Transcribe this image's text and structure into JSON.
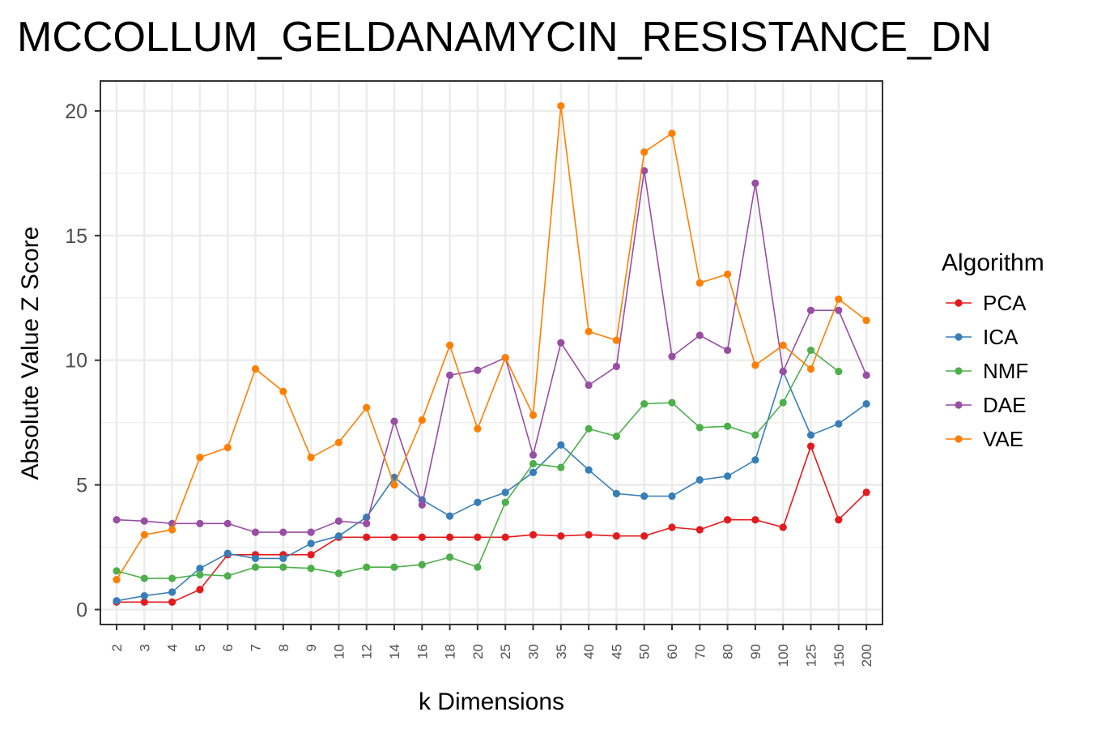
{
  "chart_data": {
    "type": "line",
    "title": "MCCOLLUM_GELDANAMYCIN_RESISTANCE_DN",
    "xlabel": "k Dimensions",
    "ylabel": "Absolute Value Z Score",
    "ylim": [
      -0.6,
      21.2
    ],
    "yticks": [
      "0",
      "5",
      "10",
      "15",
      "20"
    ],
    "grid": true,
    "legend_title": "Algorithm",
    "legend_position": "right",
    "categories": [
      "2",
      "3",
      "4",
      "5",
      "6",
      "7",
      "8",
      "9",
      "10",
      "12",
      "14",
      "16",
      "18",
      "20",
      "25",
      "30",
      "35",
      "40",
      "45",
      "50",
      "60",
      "70",
      "80",
      "90",
      "100",
      "125",
      "150",
      "200"
    ],
    "series": [
      {
        "name": "PCA",
        "color": "#e41a1c",
        "values": [
          0.3,
          0.3,
          0.3,
          0.8,
          2.2,
          2.2,
          2.2,
          2.2,
          2.9,
          2.9,
          2.9,
          2.9,
          2.9,
          2.9,
          2.9,
          3.0,
          2.95,
          3.0,
          2.95,
          2.95,
          3.3,
          3.2,
          3.6,
          3.6,
          3.3,
          6.55,
          3.6,
          4.7
        ]
      },
      {
        "name": "ICA",
        "color": "#377eb8",
        "values": [
          0.35,
          0.55,
          0.7,
          1.65,
          2.25,
          2.05,
          2.05,
          2.65,
          2.95,
          3.7,
          5.3,
          4.4,
          3.75,
          4.3,
          4.7,
          5.5,
          6.6,
          5.6,
          4.65,
          4.55,
          4.55,
          5.2,
          5.35,
          6.0,
          9.55,
          7.0,
          7.45,
          8.25
        ]
      },
      {
        "name": "NMF",
        "color": "#4daf4a",
        "values": [
          1.55,
          1.25,
          1.25,
          1.4,
          1.35,
          1.7,
          1.7,
          1.65,
          1.45,
          1.7,
          1.7,
          1.8,
          2.1,
          1.7,
          4.3,
          5.85,
          5.7,
          7.25,
          6.95,
          8.25,
          8.3,
          7.3,
          7.35,
          7.0,
          8.3,
          10.4,
          9.55,
          null
        ]
      },
      {
        "name": "DAE",
        "color": "#984ea3",
        "values": [
          3.6,
          3.55,
          3.45,
          3.45,
          3.45,
          3.1,
          3.1,
          3.1,
          3.55,
          3.45,
          7.55,
          4.2,
          9.4,
          9.6,
          10.1,
          6.2,
          10.7,
          9.0,
          9.75,
          17.6,
          10.15,
          11.0,
          10.4,
          17.1,
          9.55,
          12.0,
          12.0,
          9.4
        ]
      },
      {
        "name": "VAE",
        "color": "#ff7f00",
        "values": [
          1.2,
          3.0,
          3.2,
          6.1,
          6.5,
          9.65,
          8.75,
          6.1,
          6.7,
          8.1,
          5.0,
          7.6,
          10.6,
          7.25,
          10.1,
          7.8,
          20.2,
          11.15,
          10.8,
          18.35,
          19.1,
          13.1,
          13.45,
          9.8,
          10.6,
          9.65,
          12.45,
          11.6
        ]
      }
    ]
  }
}
